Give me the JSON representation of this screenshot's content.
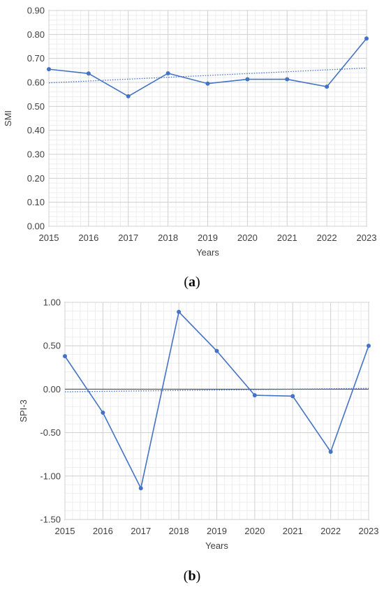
{
  "chart_data": [
    {
      "type": "line",
      "caption_letter": "a",
      "xlabel": "Years",
      "ylabel": "SMI",
      "x": [
        "2015",
        "2016",
        "2017",
        "2018",
        "2019",
        "2020",
        "2021",
        "2022",
        "2023"
      ],
      "series": [
        {
          "values": [
            0.655,
            0.637,
            0.542,
            0.638,
            0.595,
            0.613,
            0.613,
            0.582,
            0.783
          ],
          "color": "#4472C4"
        }
      ],
      "trendline": {
        "style": "dotted",
        "start": 0.598,
        "end": 0.66,
        "color": "#4472C4"
      },
      "ylim": [
        0.0,
        0.9
      ],
      "yticks": [
        "0.00",
        "0.10",
        "0.20",
        "0.30",
        "0.40",
        "0.50",
        "0.60",
        "0.70",
        "0.80",
        "0.90"
      ],
      "grid": true
    },
    {
      "type": "line",
      "caption_letter": "b",
      "xlabel": "Years",
      "ylabel": "SPI-3",
      "x": [
        "2015",
        "2016",
        "2017",
        "2018",
        "2019",
        "2020",
        "2021",
        "2022",
        "2023"
      ],
      "series": [
        {
          "values": [
            0.38,
            -0.27,
            -1.14,
            0.89,
            0.44,
            -0.07,
            -0.08,
            -0.72,
            0.5
          ],
          "color": "#4472C4"
        }
      ],
      "trendline": {
        "style": "dotted",
        "start": -0.03,
        "end": 0.01,
        "color": "#4472C4"
      },
      "ylim": [
        -1.5,
        1.0
      ],
      "yticks": [
        "-1.50",
        "-1.00",
        "-0.50",
        "0.00",
        "0.50",
        "1.00"
      ],
      "grid": true
    }
  ]
}
